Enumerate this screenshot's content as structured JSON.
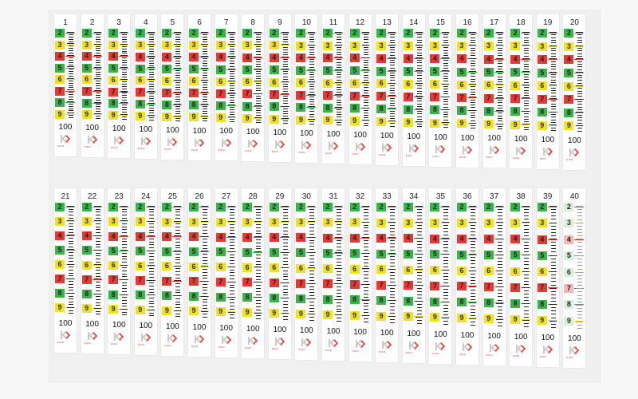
{
  "image": {
    "subject": "sheet of printed measurement label strips",
    "colors": {
      "green": "#3cb34a",
      "yellow": "#f1e02a",
      "red": "#e53935",
      "faint": "#cfcfcf",
      "tick": "#222222",
      "background": "#f7f7f7"
    }
  },
  "strip_rows": [
    {
      "numbers": [
        "1",
        "2",
        "3",
        "4",
        "5",
        "6",
        "7",
        "8",
        "9",
        "10",
        "11",
        "12",
        "13",
        "14",
        "15",
        "16",
        "17",
        "18",
        "19",
        "20"
      ]
    },
    {
      "numbers": [
        "21",
        "22",
        "23",
        "24",
        "25",
        "26",
        "27",
        "28",
        "29",
        "30",
        "31",
        "32",
        "33",
        "34",
        "35",
        "36",
        "37",
        "38",
        "39",
        "40"
      ]
    }
  ],
  "scale_marks": [
    {
      "text": "2",
      "color": "green"
    },
    {
      "text": "3",
      "color": "yellow"
    },
    {
      "text": "4",
      "color": "red"
    },
    {
      "text": "5",
      "color": "green"
    },
    {
      "text": "6",
      "color": "yellow"
    },
    {
      "text": "7",
      "color": "red"
    },
    {
      "text": "8",
      "color": "green"
    },
    {
      "text": "9",
      "color": "yellow"
    }
  ],
  "end_label": "100",
  "logo_text": "KIKO"
}
